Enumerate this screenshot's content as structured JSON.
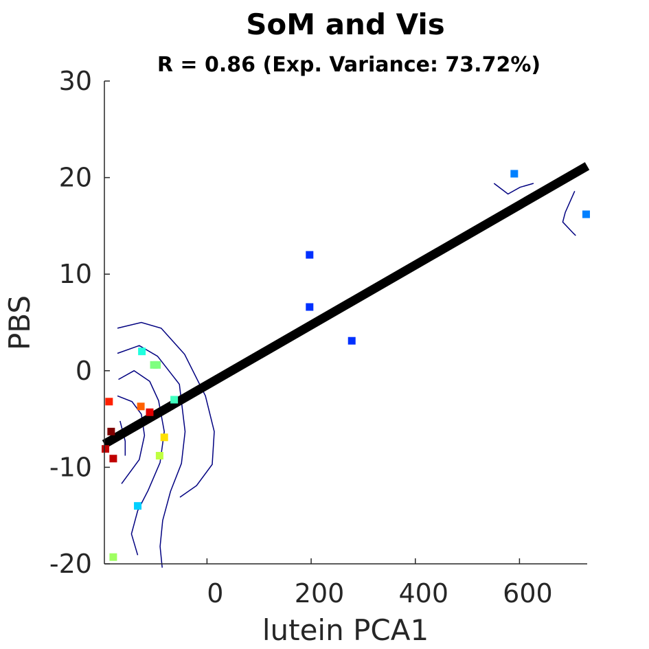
{
  "chart_data": {
    "type": "scatter",
    "title": "SoM and Vis",
    "subtitle": "R = 0.86 (Exp. Variance: 73.72%)",
    "xlabel": "lutein PCA1",
    "ylabel": "PBS",
    "xlim": [
      -197,
      730
    ],
    "ylim": [
      -20,
      30
    ],
    "x_ticks": [
      0,
      200,
      400,
      600
    ],
    "x_tick_labels": [
      "0",
      "200",
      "400",
      "600"
    ],
    "y_ticks": [
      -20,
      -10,
      0,
      10,
      20,
      30
    ],
    "y_tick_labels": [
      "-20",
      "-10",
      "0",
      "10",
      "20",
      "30"
    ],
    "grid": false,
    "points": [
      {
        "x": -188,
        "y": -3.2,
        "color": "#ff2000"
      },
      {
        "x": -184,
        "y": -6.3,
        "color": "#800000"
      },
      {
        "x": -195,
        "y": -8.1,
        "color": "#c00000"
      },
      {
        "x": -180,
        "y": -9.1,
        "color": "#c00000"
      },
      {
        "x": -125,
        "y": 2.0,
        "color": "#20ffdf"
      },
      {
        "x": -102,
        "y": 0.6,
        "color": "#7fff80"
      },
      {
        "x": -96,
        "y": 0.6,
        "color": "#7fff80"
      },
      {
        "x": -127,
        "y": -3.7,
        "color": "#ff6000"
      },
      {
        "x": -110,
        "y": -4.3,
        "color": "#e00000"
      },
      {
        "x": -63,
        "y": -3.0,
        "color": "#40ffbf"
      },
      {
        "x": -82,
        "y": -6.9,
        "color": "#ffe000"
      },
      {
        "x": -91,
        "y": -8.8,
        "color": "#bfff40"
      },
      {
        "x": -133,
        "y": -14.0,
        "color": "#00d0ff"
      },
      {
        "x": -180,
        "y": -19.3,
        "color": "#9fff60"
      },
      {
        "x": 197,
        "y": 12.0,
        "color": "#0030ff"
      },
      {
        "x": 197,
        "y": 6.6,
        "color": "#0030ff"
      },
      {
        "x": 278,
        "y": 3.1,
        "color": "#0030ff"
      },
      {
        "x": 590,
        "y": 20.4,
        "color": "#0080ff"
      },
      {
        "x": 728,
        "y": 16.2,
        "color": "#0080ff"
      }
    ],
    "fit_line": {
      "x": [
        -197,
        730
      ],
      "y": [
        -7.6,
        21.2
      ],
      "color": "#000000"
    },
    "contours": [
      [
        [
          -167,
          -5.2
        ],
        [
          -157,
          -7.3
        ],
        [
          -157,
          -8.8
        ]
      ],
      [
        [
          -172,
          -2.6
        ],
        [
          -144,
          -3.2
        ],
        [
          -126,
          -4.5
        ],
        [
          -120,
          -6.7
        ],
        [
          -130,
          -9.2
        ],
        [
          -164,
          -11.7
        ]
      ],
      [
        [
          -170,
          -0.9
        ],
        [
          -140,
          0.0
        ],
        [
          -110,
          -1.1
        ],
        [
          -93,
          -3.1
        ],
        [
          -82,
          -6.3
        ],
        [
          -90,
          -9.5
        ],
        [
          -113,
          -12.4
        ],
        [
          -133,
          -14.5
        ],
        [
          -145,
          -16.9
        ],
        [
          -133,
          -19.1
        ]
      ],
      [
        [
          -172,
          1.8
        ],
        [
          -130,
          2.6
        ],
        [
          -95,
          1.5
        ],
        [
          -53,
          -1.4
        ],
        [
          -42,
          -6.3
        ],
        [
          -49,
          -9.6
        ],
        [
          -70,
          -12.5
        ],
        [
          -85,
          -15.5
        ],
        [
          -90,
          -18.2
        ],
        [
          -86,
          -20.4
        ]
      ],
      [
        [
          -172,
          4.4
        ],
        [
          -126,
          5.0
        ],
        [
          -88,
          4.4
        ],
        [
          -43,
          1.7
        ],
        [
          -3,
          -2.6
        ],
        [
          14,
          -6.3
        ],
        [
          10,
          -9.7
        ],
        [
          -20,
          -11.9
        ],
        [
          -52,
          -13.1
        ]
      ],
      [
        [
          551,
          19.4
        ],
        [
          578,
          18.3
        ],
        [
          601,
          19.0
        ],
        [
          627,
          19.4
        ]
      ],
      [
        [
          706,
          18.6
        ],
        [
          688,
          16.4
        ],
        [
          683,
          15.4
        ],
        [
          704,
          14.2
        ],
        [
          708,
          14.0
        ]
      ]
    ]
  }
}
